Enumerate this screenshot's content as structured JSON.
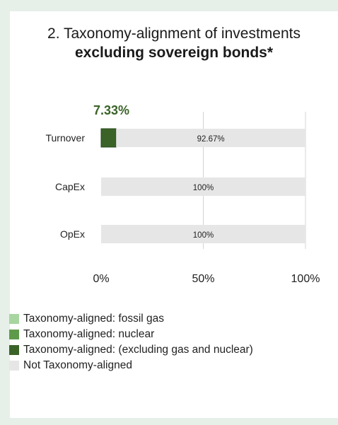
{
  "title_line1": "2. Taxonomy-alignment of investments",
  "title_line2": "excluding sovereign bonds*",
  "chart_data": {
    "type": "bar",
    "orientation": "horizontal",
    "stacked": true,
    "categories": [
      "Turnover",
      "CapEx",
      "OpEx"
    ],
    "series": [
      {
        "name": "Taxonomy-aligned: fossil gas",
        "color": "#a8d5a0",
        "values": [
          0,
          0,
          0
        ]
      },
      {
        "name": "Taxonomy-aligned: nuclear",
        "color": "#5f9a4a",
        "values": [
          0,
          0,
          0
        ]
      },
      {
        "name": "Taxonomy-aligned: (excluding gas and nuclear)",
        "color": "#3b6328",
        "values": [
          7.33,
          0,
          0
        ]
      },
      {
        "name": "Not Taxonomy-aligned",
        "color": "#e6e6e6",
        "values": [
          92.67,
          100,
          100
        ]
      }
    ],
    "data_labels": {
      "aligned": [
        "7.33%",
        "",
        ""
      ],
      "not_aligned": [
        "92.67%",
        "100%",
        "100%"
      ]
    },
    "x_ticks": [
      "0%",
      "50%",
      "100%"
    ],
    "xlim": [
      0,
      100
    ],
    "grid": "vertical",
    "legend": "bottom",
    "highlight_color": "#3b6328"
  }
}
